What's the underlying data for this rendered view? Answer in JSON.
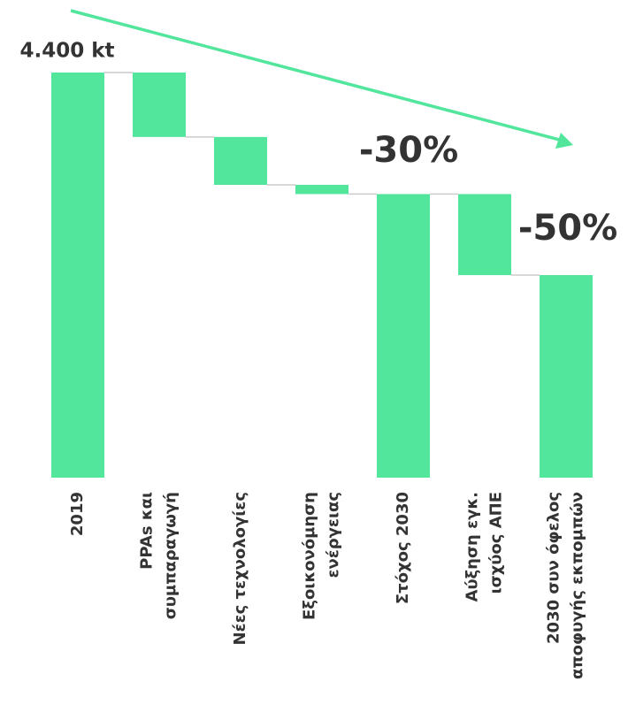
{
  "chart_data": {
    "type": "waterfall",
    "categories": [
      [
        "2019"
      ],
      [
        "PPAs και",
        "συμπαραγωγή"
      ],
      [
        "Νέες τεχνολογίες"
      ],
      [
        "Εξοικονόμηση",
        "ενέργειας"
      ],
      [
        "Στόχος 2030"
      ],
      [
        "Αύξηση εγκ.",
        "ισχύος ΑΠΕ"
      ],
      [
        "2030 συν όφελος",
        "αποφυγής εκπομπών"
      ]
    ],
    "values": [
      4400,
      -700,
      -520,
      -100,
      3080,
      -880,
      2200
    ],
    "value_labels": [
      "4.400 kt",
      null,
      null,
      null,
      null,
      null,
      null
    ],
    "measures": [
      "total",
      "relative",
      "relative",
      "relative",
      "total",
      "relative",
      "total"
    ],
    "color": "#52e59c",
    "ylim": [
      0,
      4400
    ],
    "annotations": [
      {
        "text": "-30%"
      },
      {
        "text": "-50%"
      }
    ]
  }
}
